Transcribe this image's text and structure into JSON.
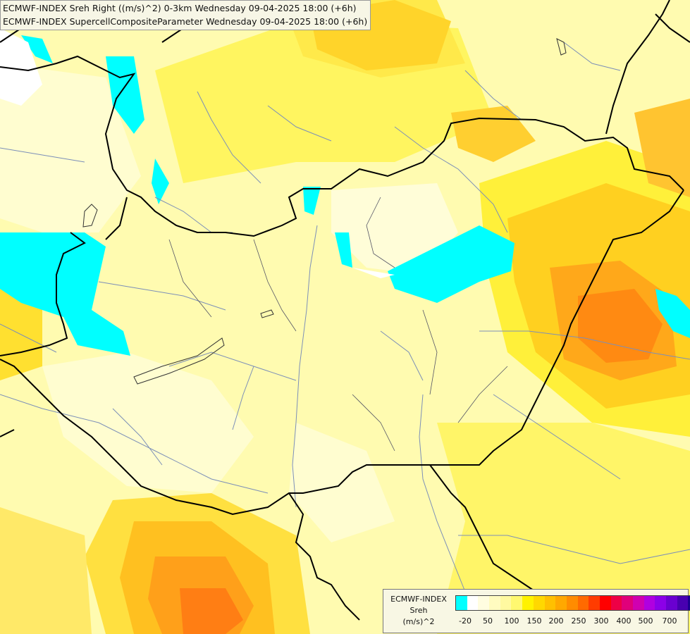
{
  "header": {
    "line1": "ECMWF-INDEX Sreh Right ((m/s)^2) 0-3km Wednesday 09-04-2025 18:00 (+6h)",
    "line2": "ECMWF-INDEX SupercellCompositeParameter Wednesday 09-04-2025 18:00 (+6h)"
  },
  "legend": {
    "title_line1": "ECMWF-INDEX",
    "title_line2": "Sreh",
    "title_line3": "(m/s)^2",
    "colors": [
      "#00ffff",
      "#ffffff",
      "#fffde0",
      "#fffbc0",
      "#fff9a0",
      "#fff870",
      "#fff200",
      "#ffd800",
      "#ffc000",
      "#ffa800",
      "#ff8c00",
      "#ff6a00",
      "#ff3c00",
      "#ff0000",
      "#ee0045",
      "#e0007a",
      "#d000b0",
      "#b000e0",
      "#8c00e8",
      "#6a00d0",
      "#4800b0",
      "#1c0090"
    ],
    "labels": [
      "-20",
      "50",
      "100",
      "150",
      "200",
      "250",
      "300",
      "400",
      "500",
      "700"
    ]
  }
}
